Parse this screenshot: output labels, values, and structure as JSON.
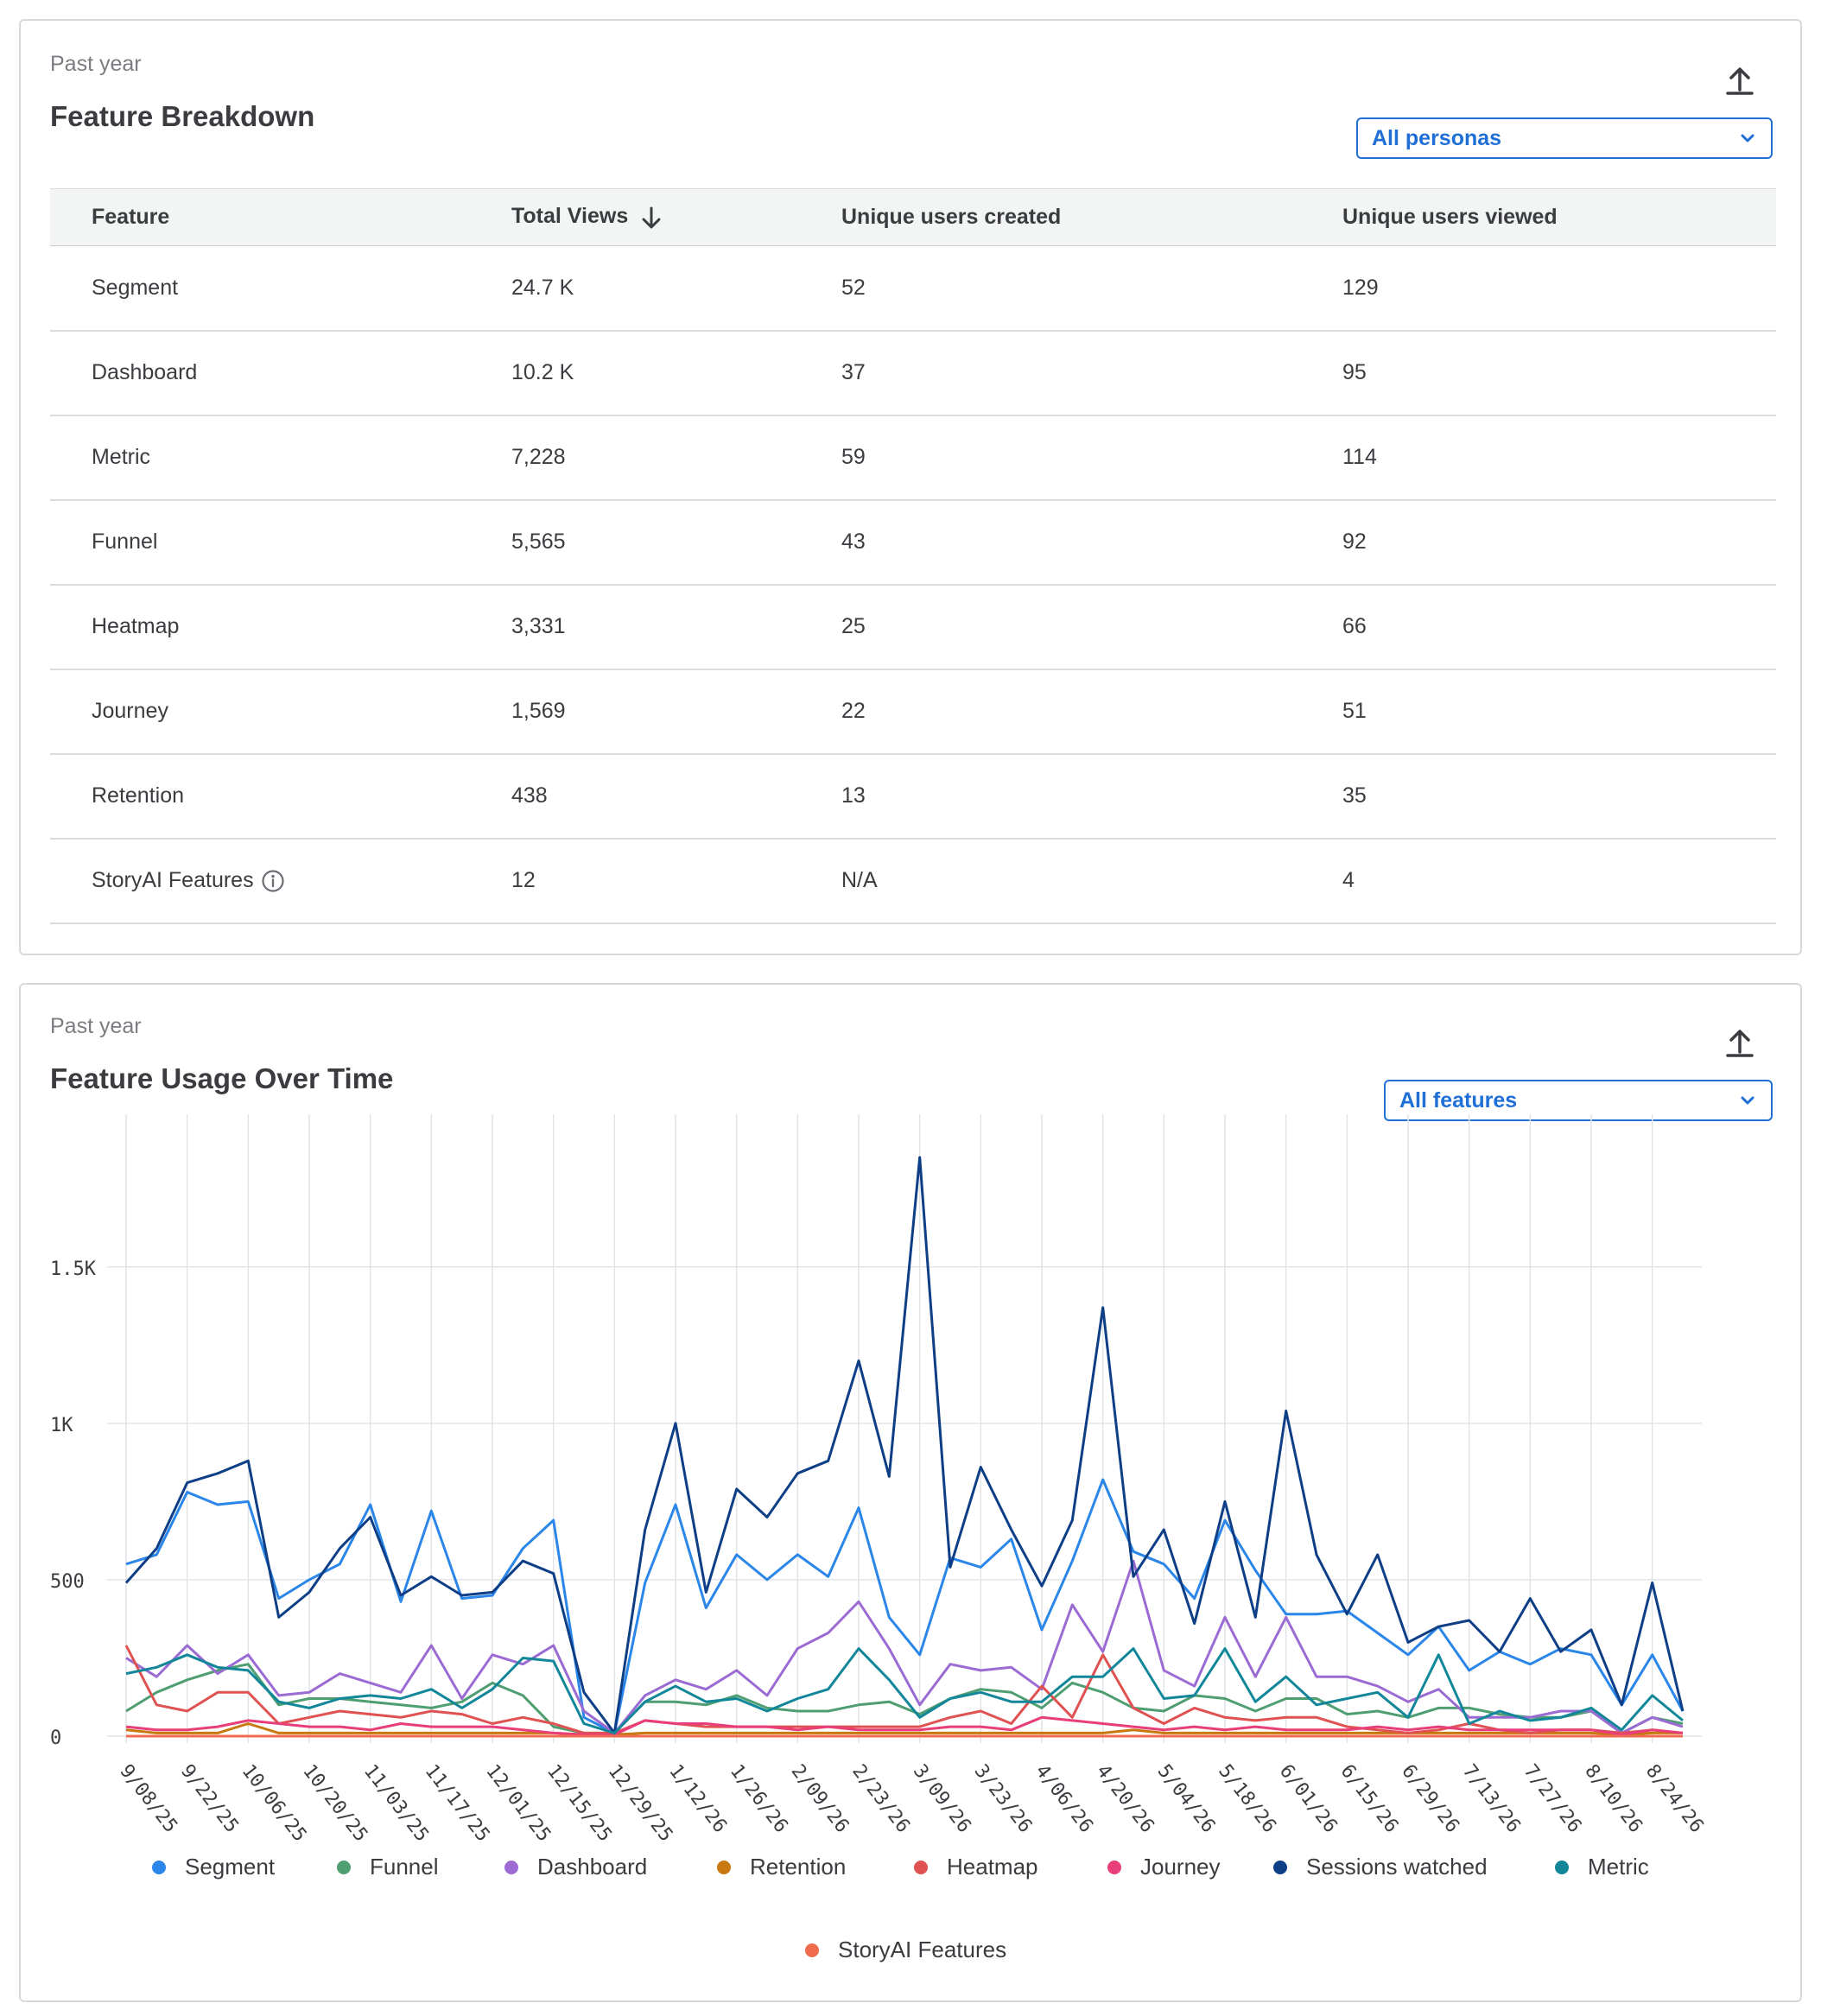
{
  "breakdown": {
    "period": "Past year",
    "title": "Feature Breakdown",
    "persona_filter": "All personas",
    "columns": [
      "Feature",
      "Total Views",
      "Unique users created",
      "Unique users viewed"
    ],
    "rows": [
      {
        "feature": "Segment",
        "views": "24.7 K",
        "created": "52",
        "viewed": "129"
      },
      {
        "feature": "Dashboard",
        "views": "10.2 K",
        "created": "37",
        "viewed": "95"
      },
      {
        "feature": "Metric",
        "views": "7,228",
        "created": "59",
        "viewed": "114"
      },
      {
        "feature": "Funnel",
        "views": "5,565",
        "created": "43",
        "viewed": "92"
      },
      {
        "feature": "Heatmap",
        "views": "3,331",
        "created": "25",
        "viewed": "66"
      },
      {
        "feature": "Journey",
        "views": "1,569",
        "created": "22",
        "viewed": "51"
      },
      {
        "feature": "Retention",
        "views": "438",
        "created": "13",
        "viewed": "35"
      },
      {
        "feature": "StoryAI Features",
        "views": "12",
        "created": "N/A",
        "viewed": "4"
      }
    ]
  },
  "usage": {
    "period": "Past year",
    "title": "Feature Usage Over Time",
    "feature_filter": "All features"
  },
  "colors": {
    "accent": "#1f6fd6",
    "text": "#3a3c40",
    "muted": "#7a7d82"
  },
  "chart_data": {
    "type": "line",
    "title": "Feature Usage Over Time",
    "xlabel": "",
    "ylabel": "",
    "ylim": [
      0,
      1850
    ],
    "yticks": [
      0,
      500,
      1000,
      1500
    ],
    "ytick_labels": [
      "0",
      "500",
      "1K",
      "1.5K"
    ],
    "x": [
      "9/08/25",
      "9/15/25",
      "9/22/25",
      "9/29/25",
      "10/06/25",
      "10/13/25",
      "10/20/25",
      "10/27/25",
      "11/03/25",
      "11/10/25",
      "11/17/25",
      "11/24/25",
      "12/01/25",
      "12/08/25",
      "12/15/25",
      "12/22/25",
      "12/29/25",
      "1/05/26",
      "1/12/26",
      "1/19/26",
      "1/26/26",
      "2/02/26",
      "2/09/26",
      "2/16/26",
      "2/23/26",
      "3/02/26",
      "3/09/26",
      "3/16/26",
      "3/23/26",
      "3/30/26",
      "4/06/26",
      "4/13/26",
      "4/20/26",
      "4/27/26",
      "5/04/26",
      "5/11/26",
      "5/18/26",
      "5/25/26",
      "6/01/26",
      "6/08/26",
      "6/15/26",
      "6/22/26",
      "6/29/26",
      "7/06/26",
      "7/13/26",
      "7/20/26",
      "7/27/26",
      "8/03/26",
      "8/10/26",
      "8/17/26",
      "8/24/26",
      "8/31/26"
    ],
    "x_tick_labels": [
      "9/08/25",
      "9/22/25",
      "10/06/25",
      "10/20/25",
      "11/03/25",
      "11/17/25",
      "12/01/25",
      "12/15/25",
      "12/29/25",
      "1/12/26",
      "1/26/26",
      "2/09/26",
      "2/23/26",
      "3/09/26",
      "3/23/26",
      "4/06/26",
      "4/20/26",
      "5/04/26",
      "5/18/26",
      "6/01/26",
      "6/15/26",
      "6/29/26",
      "7/13/26",
      "7/27/26",
      "8/10/26",
      "8/24/26"
    ],
    "grid": true,
    "legend_position": "bottom",
    "series": [
      {
        "name": "Segment",
        "color": "#2a86e8",
        "values": [
          550,
          580,
          780,
          740,
          750,
          440,
          500,
          550,
          740,
          430,
          720,
          440,
          450,
          600,
          690,
          60,
          10,
          490,
          740,
          410,
          580,
          500,
          580,
          510,
          730,
          380,
          260,
          570,
          540,
          630,
          340,
          560,
          820,
          590,
          550,
          440,
          690,
          530,
          390,
          390,
          400,
          330,
          260,
          350,
          210,
          270,
          230,
          280,
          260,
          100,
          260,
          80
        ]
      },
      {
        "name": "Funnel",
        "color": "#4f9e72",
        "values": [
          80,
          140,
          180,
          210,
          230,
          100,
          120,
          120,
          110,
          100,
          90,
          110,
          170,
          130,
          30,
          10,
          10,
          110,
          110,
          100,
          130,
          90,
          80,
          80,
          100,
          110,
          70,
          120,
          150,
          140,
          90,
          170,
          140,
          90,
          80,
          130,
          120,
          80,
          120,
          120,
          70,
          80,
          60,
          90,
          90,
          70,
          60,
          60,
          80,
          10,
          60,
          40
        ]
      },
      {
        "name": "Dashboard",
        "color": "#9b6bd3",
        "values": [
          250,
          190,
          290,
          200,
          260,
          130,
          140,
          200,
          170,
          140,
          290,
          120,
          260,
          230,
          290,
          80,
          10,
          130,
          180,
          150,
          210,
          130,
          280,
          330,
          430,
          280,
          100,
          230,
          210,
          220,
          150,
          420,
          270,
          560,
          210,
          160,
          380,
          190,
          380,
          190,
          190,
          160,
          110,
          150,
          60,
          60,
          60,
          80,
          80,
          10,
          60,
          30
        ]
      },
      {
        "name": "Retention",
        "color": "#c7790f",
        "values": [
          20,
          10,
          10,
          10,
          40,
          10,
          10,
          10,
          10,
          10,
          10,
          10,
          10,
          10,
          10,
          5,
          5,
          10,
          10,
          10,
          10,
          10,
          10,
          10,
          10,
          10,
          10,
          10,
          10,
          10,
          10,
          10,
          10,
          20,
          10,
          10,
          10,
          10,
          10,
          10,
          10,
          10,
          10,
          10,
          10,
          10,
          10,
          10,
          10,
          5,
          10,
          10
        ]
      },
      {
        "name": "Heatmap",
        "color": "#e05252",
        "values": [
          290,
          100,
          80,
          140,
          140,
          40,
          60,
          80,
          70,
          60,
          80,
          70,
          40,
          60,
          40,
          10,
          10,
          50,
          40,
          30,
          30,
          30,
          30,
          30,
          30,
          30,
          30,
          60,
          80,
          40,
          160,
          60,
          260,
          90,
          40,
          90,
          60,
          50,
          60,
          60,
          30,
          20,
          10,
          20,
          40,
          20,
          10,
          20,
          20,
          10,
          20,
          10
        ]
      },
      {
        "name": "Journey",
        "color": "#e83e7a",
        "values": [
          30,
          20,
          20,
          30,
          50,
          40,
          30,
          30,
          20,
          40,
          30,
          30,
          30,
          20,
          10,
          5,
          5,
          50,
          40,
          40,
          30,
          30,
          20,
          30,
          20,
          20,
          20,
          30,
          30,
          20,
          60,
          50,
          40,
          30,
          20,
          30,
          20,
          30,
          20,
          20,
          20,
          30,
          20,
          30,
          20,
          20,
          20,
          20,
          20,
          5,
          20,
          10
        ]
      },
      {
        "name": "Sessions watched",
        "color": "#0d3e86",
        "values": [
          490,
          600,
          810,
          840,
          880,
          380,
          460,
          600,
          700,
          450,
          510,
          450,
          460,
          560,
          520,
          140,
          10,
          660,
          1000,
          460,
          790,
          700,
          840,
          880,
          1200,
          830,
          1850,
          540,
          860,
          660,
          480,
          690,
          1370,
          510,
          660,
          360,
          750,
          380,
          1040,
          580,
          390,
          580,
          300,
          350,
          370,
          270,
          440,
          270,
          340,
          100,
          490,
          80
        ]
      },
      {
        "name": "Metric",
        "color": "#12879a",
        "values": [
          200,
          220,
          260,
          220,
          210,
          110,
          90,
          120,
          130,
          120,
          150,
          90,
          150,
          250,
          240,
          40,
          10,
          110,
          160,
          110,
          120,
          80,
          120,
          150,
          280,
          180,
          60,
          120,
          140,
          110,
          110,
          190,
          190,
          280,
          120,
          130,
          280,
          110,
          190,
          100,
          120,
          140,
          60,
          260,
          40,
          80,
          50,
          60,
          90,
          20,
          130,
          50
        ]
      },
      {
        "name": "StoryAI Features",
        "color": "#f06b4e",
        "values": [
          0,
          0,
          0,
          0,
          0,
          0,
          0,
          0,
          0,
          0,
          0,
          0,
          0,
          0,
          0,
          0,
          0,
          0,
          0,
          0,
          0,
          0,
          0,
          0,
          0,
          0,
          0,
          0,
          0,
          0,
          0,
          0,
          0,
          0,
          0,
          0,
          0,
          0,
          0,
          0,
          0,
          0,
          0,
          0,
          0,
          0,
          0,
          0,
          0,
          0,
          0,
          0
        ]
      }
    ]
  }
}
